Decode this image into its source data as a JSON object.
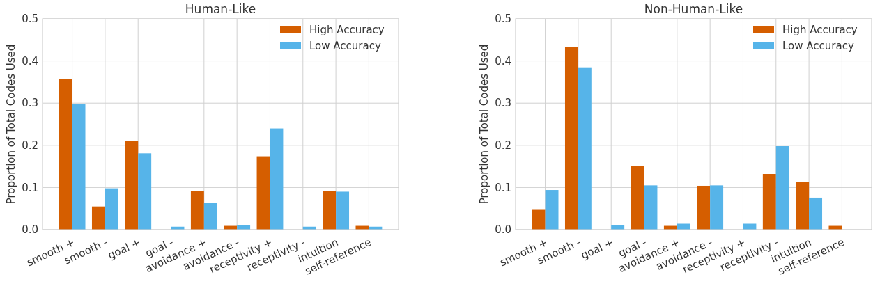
{
  "chart_data": [
    {
      "type": "bar",
      "title": "Human-Like",
      "ylabel": "Proportion of Total Codes Used",
      "categories": [
        "smooth +",
        "smooth -",
        "goal +",
        "goal -",
        "avoidance +",
        "avoidance -",
        "receptivity +",
        "receptivity -",
        "intuition",
        "self-reference"
      ],
      "series": [
        {
          "name": "High Accuracy",
          "color": "#d55e00",
          "values": [
            0.358,
            0.055,
            0.211,
            0,
            0.092,
            0.009,
            0.174,
            0,
            0.092,
            0.009
          ]
        },
        {
          "name": "Low Accuracy",
          "color": "#56b4e9",
          "values": [
            0.297,
            0.098,
            0.181,
            0.007,
            0.063,
            0.01,
            0.24,
            0.007,
            0.09,
            0.007
          ]
        }
      ],
      "ylim": [
        0,
        0.5
      ],
      "yticks": [
        {
          "value": 0,
          "label": "0.0"
        },
        0.1,
        0.2,
        0.3,
        0.4,
        0.5
      ],
      "grid": true,
      "legend": "top right"
    },
    {
      "type": "bar",
      "title": "Non-Human-Like",
      "ylabel": "Proportion of Total Codes Used",
      "categories": [
        "smooth +",
        "smooth -",
        "goal +",
        "goal -",
        "avoidance +",
        "avoidance -",
        "receptivity +",
        "receptivity -",
        "intuition",
        "self-reference"
      ],
      "series": [
        {
          "name": "High Accuracy",
          "color": "#d55e00",
          "values": [
            0.047,
            0.434,
            0,
            0.151,
            0.009,
            0.104,
            0,
            0.132,
            0.113,
            0.009
          ]
        },
        {
          "name": "Low Accuracy",
          "color": "#56b4e9",
          "values": [
            0.094,
            0.385,
            0.011,
            0.105,
            0.014,
            0.105,
            0.014,
            0.198,
            0.076,
            0
          ]
        }
      ],
      "ylim": [
        0,
        0.5
      ],
      "yticks": [
        {
          "value": 0,
          "label": "0.0"
        },
        0.1,
        0.2,
        0.3,
        0.4,
        0.5
      ],
      "grid": true,
      "legend": "top right"
    }
  ]
}
